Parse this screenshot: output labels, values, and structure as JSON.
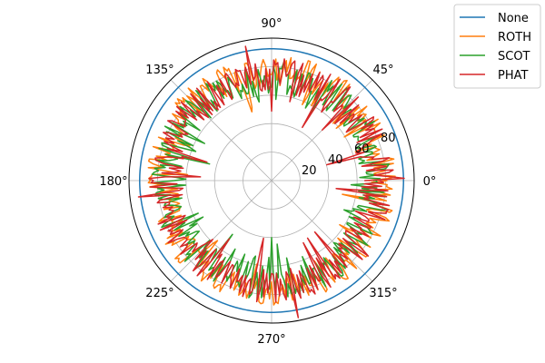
{
  "chart_data": {
    "type": "line",
    "projection": "polar",
    "theta_unit": "degrees",
    "theta_ticks": [
      "0°",
      "45°",
      "90°",
      "135°",
      "180°",
      "225°",
      "270°",
      "315°"
    ],
    "theta_tick_values": [
      0,
      45,
      90,
      135,
      180,
      225,
      270,
      315
    ],
    "r_ticks": [
      "20",
      "40",
      "60",
      "80"
    ],
    "r_tick_values": [
      20,
      40,
      60,
      80
    ],
    "r_label_angle": 22.5,
    "rlim": [
      0,
      100
    ],
    "grid": true,
    "legend_position": "upper right, outside the plot",
    "series": [
      {
        "name": "None",
        "color": "#1f77b4",
        "r_mean": 92.5,
        "r_spread": 0.0,
        "spikes": []
      },
      {
        "name": "ROTH",
        "color": "#ff7f0e",
        "r_mean": 77.0,
        "r_spread": 11.0,
        "spikes": [
          {
            "theta": 5,
            "r": 80
          },
          {
            "theta": 355,
            "r": 73
          },
          {
            "theta": 187,
            "r": 71
          }
        ]
      },
      {
        "name": "SCOT",
        "color": "#2ca02c",
        "r_mean": 72.0,
        "r_spread": 12.0,
        "spikes": [
          {
            "theta": 3,
            "r": 74
          },
          {
            "theta": 184,
            "r": 80
          },
          {
            "theta": 100,
            "r": 60
          },
          {
            "theta": 250,
            "r": 55
          }
        ]
      },
      {
        "name": "PHAT",
        "color": "#d62728",
        "r_mean": 74.0,
        "r_spread": 12.0,
        "spikes": [
          {
            "theta": 101,
            "r": 96
          },
          {
            "theta": 281,
            "r": 98
          },
          {
            "theta": 187,
            "r": 94
          },
          {
            "theta": 1,
            "r": 93
          }
        ]
      }
    ]
  }
}
